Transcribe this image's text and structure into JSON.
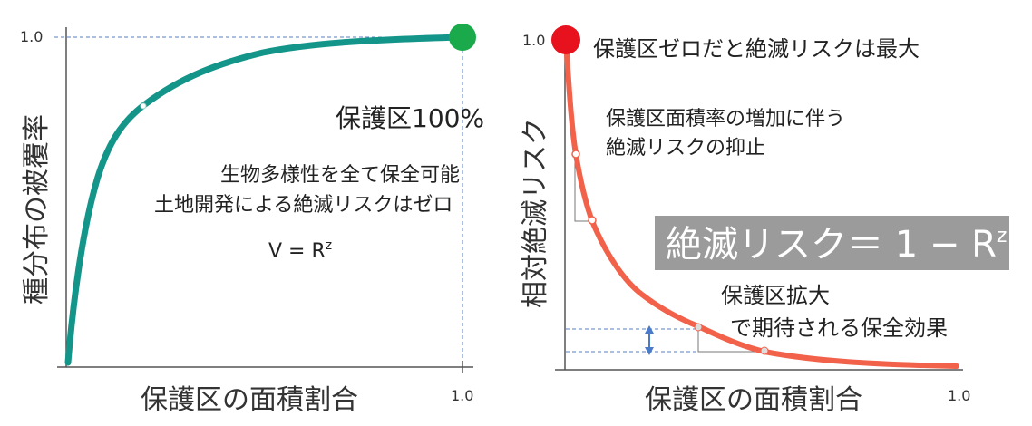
{
  "left_panel": {
    "y_axis_label": "種分布の被覆率",
    "x_axis_label": "保護区の面積割合",
    "y_tick_label": "1.0",
    "x_tick_label": "1.0",
    "annotation_title": "保護区100%",
    "annotation_line1": "生物多様性を全て保全可能",
    "annotation_line2": "土地開発による絶滅リスクはゼロ",
    "formula_base": "V = R",
    "formula_exp": "z",
    "curve_color": "#14958a",
    "endpoint_color": "#1aaa4c"
  },
  "right_panel": {
    "y_axis_label": "相対絶滅リスク",
    "x_axis_label": "保護区の面積割合",
    "y_tick_label": "1.0",
    "x_tick_label": "1.0",
    "top_annotation": "保護区ゼロだと絶滅リスクは最大",
    "mid_annotation_line1": "保護区面積率の増加に伴う",
    "mid_annotation_line2": "絶滅リスクの抑止",
    "formula_base": "絶滅リスク＝ 1 − R",
    "formula_exp": "z",
    "effect_line1": "保護区拡大",
    "effect_line2": "で期待される保全効果",
    "curve_color": "#f2614a",
    "start_point_color": "#e8121e",
    "formula_box_color": "#9b9b9b",
    "arrow_color": "#4a7ac8"
  }
}
